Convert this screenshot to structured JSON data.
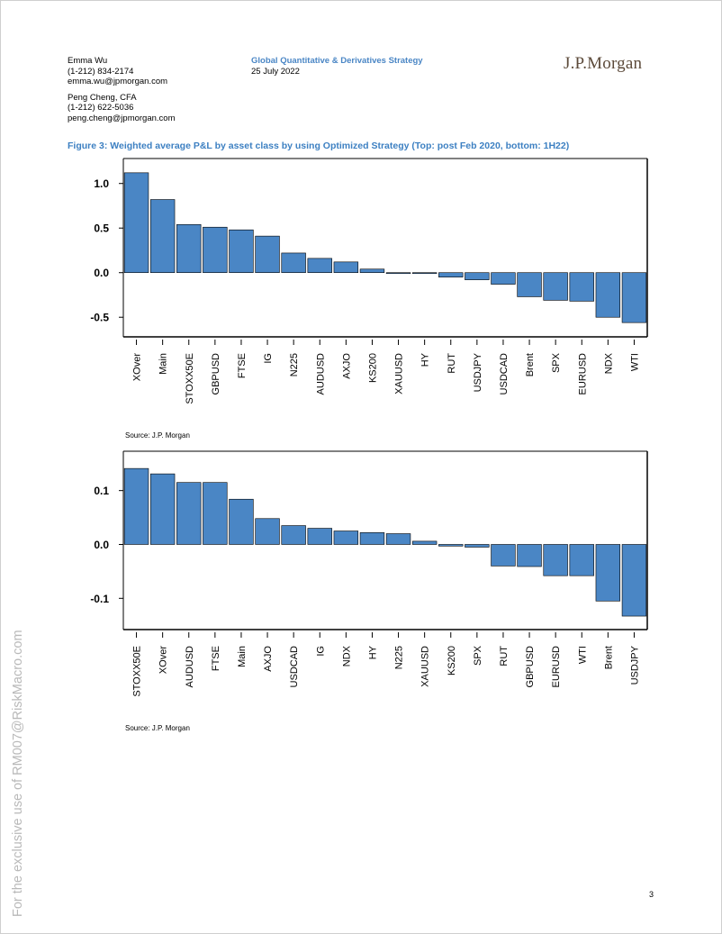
{
  "header": {
    "authors": [
      {
        "name": "Emma Wu",
        "phone": "(1-212) 834-2174",
        "email": "emma.wu@jpmorgan.com"
      },
      {
        "name": "Peng Cheng, CFA",
        "phone": "(1-212) 622-5036",
        "email": "peng.cheng@jpmorgan.com"
      }
    ],
    "department": "Global Quantitative & Derivatives Strategy",
    "date": "25 July 2022",
    "logo_text": "J.P.Morgan"
  },
  "figure": {
    "title": "Figure 3: Weighted average P&L by asset class by using Optimized Strategy (Top: post Feb 2020, bottom: 1H22)"
  },
  "sources": {
    "top": "Source:  J.P. Morgan",
    "bottom": "Source:  J.P. Morgan"
  },
  "page_number": "3",
  "watermark": "For the exclusive use of RM007@RiskMacro.com",
  "colors": {
    "bar": "#4a86c5",
    "bar_edge": "#000000",
    "title": "#3d80c2"
  },
  "chart_data": [
    {
      "type": "bar",
      "title": "post Feb 2020",
      "categories": [
        "XOver",
        "Main",
        "STOXX50E",
        "GBPUSD",
        "FTSE",
        "IG",
        "N225",
        "AUDUSD",
        "AXJO",
        "KS200",
        "XAUUSD",
        "HY",
        "RUT",
        "USDJPY",
        "USDCAD",
        "Brent",
        "SPX",
        "EURUSD",
        "NDX",
        "WTI"
      ],
      "values": [
        1.12,
        0.82,
        0.54,
        0.51,
        0.48,
        0.41,
        0.22,
        0.16,
        0.12,
        0.04,
        -0.01,
        -0.01,
        -0.05,
        -0.08,
        -0.13,
        -0.27,
        -0.31,
        -0.32,
        -0.5,
        -0.56
      ],
      "yticks": [
        -0.5,
        0.0,
        0.5,
        1.0
      ],
      "ytick_labels": [
        "-0.5",
        "0.0",
        "0.5",
        "1.0"
      ],
      "ylim": [
        -0.72,
        1.28
      ],
      "xlabel": "",
      "ylabel": ""
    },
    {
      "type": "bar",
      "title": "1H22",
      "categories": [
        "STOXX50E",
        "XOver",
        "AUDUSD",
        "FTSE",
        "Main",
        "AXJO",
        "USDCAD",
        "IG",
        "NDX",
        "HY",
        "N225",
        "XAUUSD",
        "KS200",
        "SPX",
        "RUT",
        "GBPUSD",
        "EURUSD",
        "WTI",
        "Brent",
        "USDJPY"
      ],
      "values": [
        0.141,
        0.131,
        0.115,
        0.115,
        0.084,
        0.048,
        0.035,
        0.03,
        0.025,
        0.022,
        0.02,
        0.006,
        -0.003,
        -0.005,
        -0.04,
        -0.041,
        -0.058,
        -0.058,
        -0.105,
        -0.133
      ],
      "yticks": [
        -0.1,
        0.0,
        0.1
      ],
      "ytick_labels": [
        "-0.1",
        "0.0",
        "0.1"
      ],
      "ylim": [
        -0.158,
        0.173
      ],
      "xlabel": "",
      "ylabel": ""
    }
  ]
}
